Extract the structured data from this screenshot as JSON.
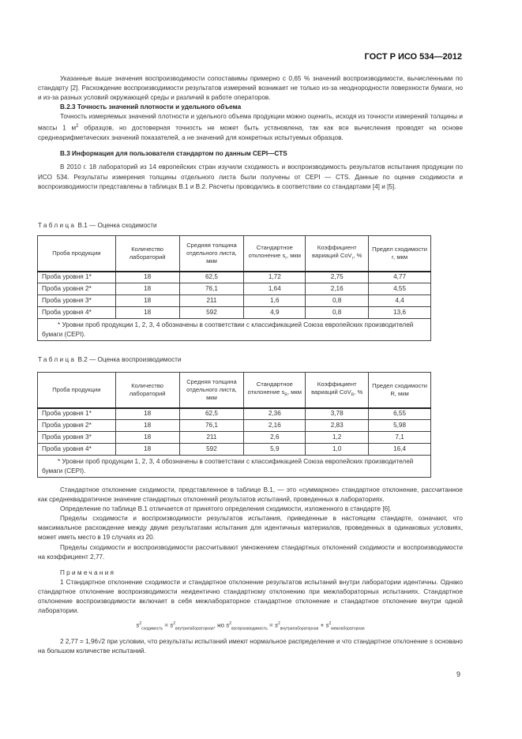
{
  "header": {
    "doc_id": "ГОСТ Р ИСО 534—2012"
  },
  "paragraphs": {
    "p1": "Указанные выше значения воспроизводимости сопоставимы примерно с 0,65 % значений воспроизводимости, вычисленными по стандарту [2]. Расхождение воспроизводимости результатов измерений возникает не только из-за неоднородности поверхности бумаги, но и из-за разных условий окружающей среды и различий в работе операторов.",
    "h_b23": "В.2.3  Точность значений плотности и удельного объема",
    "p2a": "Точность измеряемых значений плотности и удельного объема продукции можно оценить, исходя из точности измерений толщины и массы 1 м",
    "p2sup": "2",
    "p2b": " образцов, но достоверная точность не может быть установлена, так как все вычисления проводят на основе среднеарифметических значений показателей, а не значений для конкретных испытуемых образцов.",
    "h_b3": "В.3  Информация для пользователя стандартом по данным CEPI—CTS",
    "p3": "В 2010 г. 18 лабораторий из 14 европейских стран изучили сходимость и воспроизводимость результатов испытания продукции по ИСО 534. Результаты измерения толщины отдельного листа были получены от CEPI — CTS. Данные по оценке сходимости и воспроизводимости представлены в таблицах В.1 и В.2. Расчеты проводились в соответствии со стандартами [4] и [5].",
    "p4": "Стандартное отклонение сходимости, представленное в таблице В.1, — это «суммарное» стандартное отклонение, рассчитанное как среднеквадратичное значение стандартных отклонений результатов испытаний, проведенных в лабораториях.",
    "p5": "Определение по таблице В.1 отличается от принятого определения сходимости, изложенного в стандарте [6].",
    "p6": "Пределы сходимости и воспроизводимости результатов испытания, приведенные в настоящем стандарте, означают, что максимальное расхождение между двумя результатами испытания для идентичных материалов, проведенных в одинаковых условиях, может иметь место в 19 случаях из 20.",
    "p7": "Пределы сходимости и воспроизводимости рассчитывают умножением стандартных отклонений сходимости и воспроизводимости на коэффициент 2,77."
  },
  "table1": {
    "caption_word": "Таблица",
    "caption_rest": " В.1 — Оценка сходимости",
    "headers": [
      "Проба продукции",
      "Количество лабораторий",
      "Средняя толщина отдельного листа, мкм",
      "Стандартное отклонение s",
      "Коэффициент вариаций CoV",
      "Предел сходимости r, мкм"
    ],
    "header_subs": [
      "r",
      "r"
    ],
    "header_tails": [
      ", мкм",
      ", %"
    ],
    "rows": [
      [
        "Проба уровня 1*",
        "18",
        "62,5",
        "1,72",
        "2,75",
        "4,77"
      ],
      [
        "Проба уровня 2*",
        "18",
        "76,1",
        "1,64",
        "2,16",
        "4,55"
      ],
      [
        "Проба уровня 3*",
        "18",
        "211",
        "1,6",
        "0,8",
        "4,4"
      ],
      [
        "Проба уровня 4*",
        "18",
        "592",
        "4,9",
        "0,8",
        "13,6"
      ]
    ],
    "footnote": "* Уровни проб продукции 1, 2, 3, 4 обозначены в соответствии с классификацией Союза европейских производителей бумаги (CEPI)."
  },
  "table2": {
    "caption_word": "Таблица",
    "caption_rest": " В.2 — Оценка воспроизводимости",
    "headers": [
      "Проба продукции",
      "Количество лабораторий",
      "Средняя толщина отдельного листа, мкм",
      "Стандартное отклонение s",
      "Коэффициент вариаций CoV",
      "Предел сходимости R, мкм"
    ],
    "header_subs": [
      "R",
      "R"
    ],
    "header_tails": [
      ", мкм",
      ", %"
    ],
    "rows": [
      [
        "Проба уровня 1*",
        "18",
        "62,5",
        "2,36",
        "3,78",
        "6,55"
      ],
      [
        "Проба уровня 2*",
        "18",
        "76,1",
        "2,16",
        "2,83",
        "5,98"
      ],
      [
        "Проба уровня 3*",
        "18",
        "211",
        "2,6",
        "1,2",
        "7,1"
      ],
      [
        "Проба уровня 4*",
        "18",
        "592",
        "5,9",
        "1,0",
        "16,4"
      ]
    ],
    "footnote": "* Уровни проб продукции 1, 2, 3, 4 обозначены в соответствии с классификацией Союза европейских производителей бумаги (CEPI)."
  },
  "notes": {
    "title": "Примечания",
    "n1": "1  Стандартное отклонение сходимости и стандартное отклонение результатов испытаний внутри лаборатории идентичны. Однако стандартное отклонение воспроизводимости неидентично стандартному отклонению при межлабораторных испытаниях. Стандартное отклонение воспроизводимости включает в себя межлабораторное стандартное отклонение и стандартное отклонение внутри одной лаборатории.",
    "formula": {
      "s": "s",
      "sq": "2",
      "sub1": "сходимость",
      "sub2": "внутрилабораторная",
      "mid": ", но ",
      "sub3": "воспроизводимость",
      "sub4": "внутрилабораторная",
      "sub5": "межлабораторная"
    },
    "n2a": "2  2,77 = 1,96√2  при условии, что результаты испытаний имеют нормальное распределение и что стандартное отклонение ",
    "n2s": "s",
    "n2b": " основано на большом количестве испытаний."
  },
  "page_number": "9"
}
